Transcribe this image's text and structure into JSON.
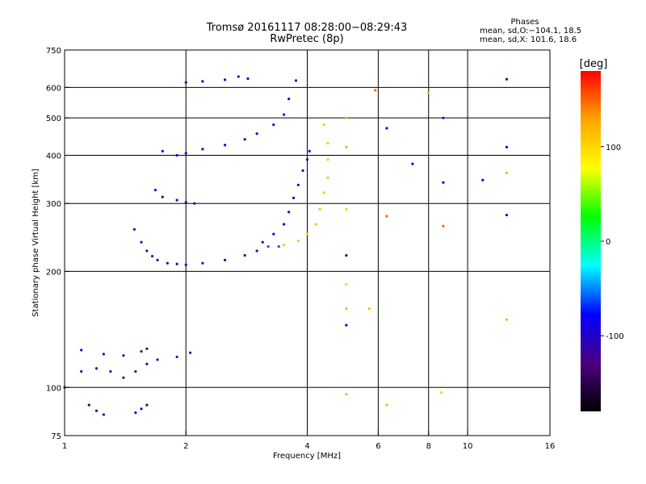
{
  "header": {
    "title_line1": "Tromsø 20161117 08:28:00−08:29:43",
    "title_line2": "RwPretec (8p)",
    "phases_title": "Phases",
    "phases_o": "mean, sd,O:−104.1, 18.5",
    "phases_x": "mean, sd,X: 101.6, 18.6"
  },
  "chart_data": {
    "type": "scatter",
    "xlabel": "Frequency [MHz]",
    "ylabel": "Stationary phase Virtual Height [km]",
    "x_scale": "log",
    "y_scale": "log",
    "xlim": [
      1,
      16
    ],
    "ylim": [
      75,
      750
    ],
    "x_ticks": [
      1,
      2,
      4,
      6,
      8,
      10,
      16
    ],
    "y_ticks": [
      75,
      100,
      200,
      300,
      400,
      500,
      600,
      750
    ],
    "x_grid": [
      2,
      4,
      6,
      8,
      10
    ],
    "y_grid": [
      100,
      200,
      300,
      400,
      500,
      600
    ],
    "colorbar": {
      "label": "[deg]",
      "range": [
        -180,
        180
      ],
      "ticks": [
        100,
        0,
        -100
      ],
      "colors": [
        "#000000",
        "#4b0082",
        "#0000ff",
        "#00ffff",
        "#00ff00",
        "#ffff00",
        "#ffa500",
        "#ff0000"
      ]
    },
    "series": [
      {
        "phase": -110,
        "points": [
          [
            1.49,
            257
          ],
          [
            1.55,
            238
          ],
          [
            1.6,
            226
          ],
          [
            1.65,
            219
          ],
          [
            1.7,
            214
          ],
          [
            1.8,
            210
          ],
          [
            1.9,
            209
          ],
          [
            2.0,
            208
          ],
          [
            2.2,
            210
          ],
          [
            2.5,
            214
          ],
          [
            2.8,
            220
          ],
          [
            3.0,
            226
          ]
        ]
      },
      {
        "phase": -95,
        "points": [
          [
            3.1,
            238
          ],
          [
            3.3,
            250
          ],
          [
            3.5,
            265
          ],
          [
            3.6,
            285
          ],
          [
            3.7,
            310
          ],
          [
            3.8,
            335
          ],
          [
            3.9,
            365
          ],
          [
            4.0,
            390
          ],
          [
            4.05,
            410
          ]
        ]
      },
      {
        "phase": -60,
        "points": [
          [
            3.2,
            232
          ],
          [
            3.4,
            232
          ]
        ]
      },
      {
        "phase": 110,
        "points": [
          [
            3.5,
            234
          ],
          [
            3.8,
            240
          ],
          [
            4.0,
            250
          ],
          [
            4.2,
            265
          ],
          [
            4.3,
            290
          ],
          [
            4.4,
            320
          ],
          [
            4.5,
            350
          ],
          [
            4.5,
            390
          ],
          [
            4.5,
            430
          ],
          [
            4.4,
            480
          ]
        ]
      },
      {
        "phase": -110,
        "points": [
          [
            1.68,
            325
          ],
          [
            1.75,
            312
          ],
          [
            1.9,
            306
          ],
          [
            2.0,
            302
          ],
          [
            2.1,
            300
          ]
        ]
      },
      {
        "phase": -100,
        "points": [
          [
            1.75,
            410
          ],
          [
            1.9,
            400
          ],
          [
            2.0,
            405
          ],
          [
            2.2,
            415
          ],
          [
            2.5,
            425
          ],
          [
            2.8,
            440
          ],
          [
            3.0,
            455
          ],
          [
            3.3,
            480
          ],
          [
            3.5,
            510
          ],
          [
            3.6,
            560
          ],
          [
            3.75,
            625
          ]
        ]
      },
      {
        "phase": -95,
        "points": [
          [
            2.0,
            618
          ],
          [
            2.2,
            622
          ],
          [
            2.5,
            628
          ],
          [
            2.7,
            640
          ],
          [
            2.85,
            632
          ]
        ]
      },
      {
        "phase": -120,
        "points": [
          [
            1.0,
            100
          ],
          [
            1.1,
            110
          ],
          [
            1.2,
            112
          ],
          [
            1.3,
            110
          ],
          [
            1.4,
            106
          ],
          [
            1.5,
            110
          ],
          [
            1.6,
            115
          ],
          [
            1.7,
            118
          ],
          [
            1.9,
            120
          ],
          [
            2.05,
            123
          ]
        ]
      },
      {
        "phase": -115,
        "points": [
          [
            1.1,
            125
          ],
          [
            1.25,
            122
          ],
          [
            1.4,
            121
          ],
          [
            1.55,
            124
          ],
          [
            1.6,
            126
          ]
        ]
      },
      {
        "phase": -110,
        "points": [
          [
            1.15,
            90
          ],
          [
            1.2,
            87
          ],
          [
            1.25,
            85
          ],
          [
            1.5,
            86
          ],
          [
            1.55,
            88
          ],
          [
            1.6,
            90
          ]
        ]
      },
      {
        "phase": 120,
        "points": [
          [
            5.0,
            96
          ],
          [
            5.0,
            160
          ],
          [
            5.0,
            500
          ],
          [
            5.0,
            420
          ],
          [
            6.3,
            90
          ],
          [
            5.7,
            160
          ],
          [
            8.0,
            580
          ],
          [
            12.5,
            150
          ],
          [
            12.5,
            360
          ]
        ]
      },
      {
        "phase": 60,
        "points": [
          [
            5.0,
            290
          ],
          [
            5.0,
            185
          ],
          [
            8.6,
            97
          ]
        ]
      },
      {
        "phase": 150,
        "points": [
          [
            5.9,
            590
          ],
          [
            6.3,
            278
          ],
          [
            8.7,
            262
          ]
        ]
      },
      {
        "phase": -90,
        "points": [
          [
            6.3,
            470
          ],
          [
            7.3,
            380
          ],
          [
            8.7,
            500
          ],
          [
            8.7,
            340
          ],
          [
            10.9,
            345
          ],
          [
            12.5,
            420
          ],
          [
            12.5,
            280
          ],
          [
            12.5,
            630
          ],
          [
            5.0,
            220
          ],
          [
            5.0,
            145
          ]
        ]
      }
    ]
  }
}
